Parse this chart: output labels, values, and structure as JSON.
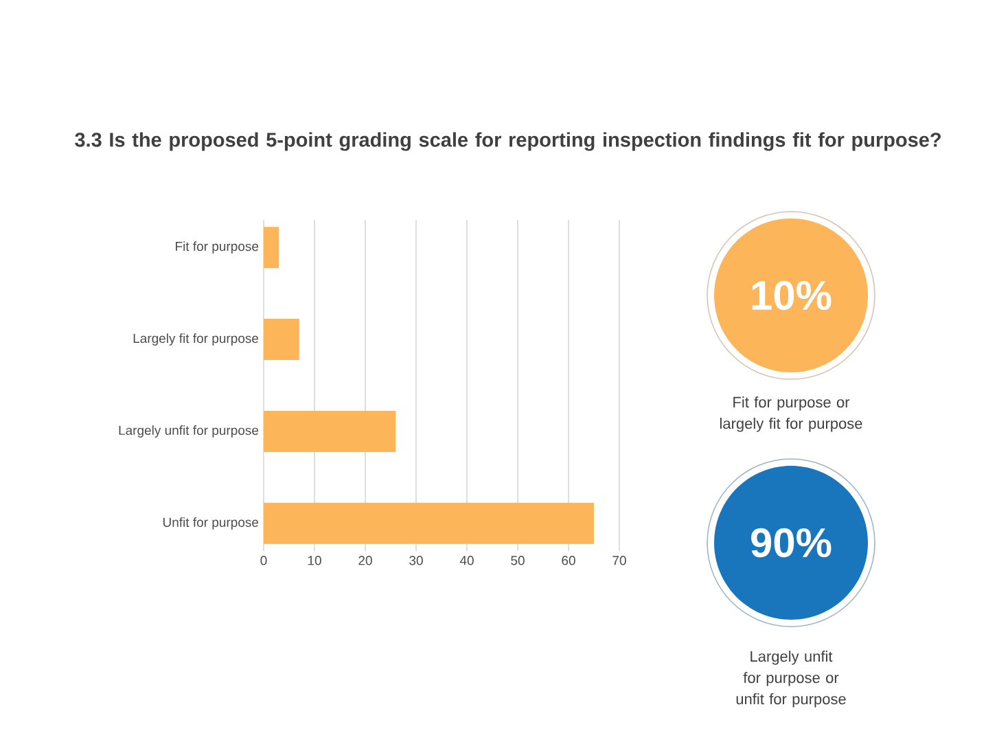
{
  "chart_data": [
    {
      "type": "bar",
      "orientation": "horizontal",
      "title": "3.3 Is the proposed 5-point grading scale for reporting inspection findings fit for purpose?",
      "categories": [
        "Fit for purpose",
        "Largely fit for purpose",
        "Largely unfit for purpose",
        "Unfit for purpose"
      ],
      "values": [
        3,
        7,
        26,
        65
      ],
      "color": "#fdb55a",
      "xlim": [
        0,
        70
      ],
      "xticks": [
        0,
        10,
        20,
        30,
        40,
        50,
        60,
        70
      ],
      "grid": "x"
    },
    {
      "type": "other",
      "categories": [
        "Fit for purpose or largely fit for purpose",
        "Largely unfit for purpose or unfit for purpose"
      ],
      "value_labels": [
        "10%",
        "90%"
      ],
      "colors": [
        "#fdb55a",
        "#1976bd"
      ]
    }
  ]
}
